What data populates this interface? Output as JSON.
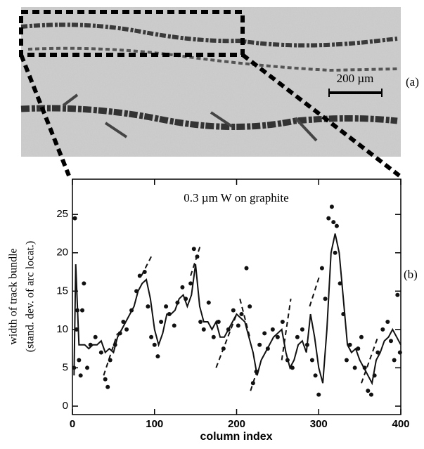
{
  "panel_a": {
    "scale_label": "200 µm",
    "label": "(a)"
  },
  "panel_b_label": "(b)",
  "chart_data": {
    "type": "line",
    "title": "0.3 µm W on graphite",
    "xlabel": "column index",
    "ylabel": [
      "width of track bundle",
      "(stand. dev. of arc locat.)"
    ],
    "xlim": [
      0,
      400
    ],
    "xticks": [
      0,
      100,
      200,
      300,
      400
    ],
    "ylim": [
      -1.1,
      29.6
    ],
    "yticks": [
      0,
      5,
      10,
      15,
      20,
      25
    ],
    "color": "#111111",
    "series": [
      {
        "style": "solid",
        "x": [
          2,
          4,
          8,
          15,
          20,
          25,
          30,
          35,
          40,
          45,
          50,
          55,
          60,
          65,
          70,
          75,
          80,
          85,
          90,
          95,
          100,
          105,
          110,
          115,
          120,
          125,
          130,
          135,
          140,
          145,
          150,
          155,
          160,
          165,
          170,
          175,
          180,
          185,
          190,
          195,
          200,
          205,
          210,
          215,
          220,
          225,
          230,
          235,
          240,
          245,
          250,
          255,
          260,
          265,
          270,
          275,
          280,
          285,
          290,
          295,
          300,
          305,
          310,
          315,
          320,
          325,
          330,
          335,
          340,
          345,
          350,
          355,
          360,
          365,
          370,
          375,
          380,
          385,
          390,
          395,
          400
        ],
        "values": [
          4,
          18.5,
          8,
          8,
          7.5,
          8,
          8,
          8.5,
          7,
          7.5,
          7,
          9,
          10,
          11,
          12,
          13,
          15,
          16,
          16.5,
          14,
          10,
          8,
          9.5,
          12,
          12,
          12.5,
          14,
          14.5,
          13,
          14.5,
          18.5,
          13,
          11,
          11,
          10,
          11,
          9,
          9,
          10,
          11,
          12,
          11.5,
          11,
          9,
          7,
          4,
          6,
          7,
          8,
          9,
          9.5,
          10,
          7,
          5,
          6,
          8,
          8.5,
          7,
          12,
          9,
          5,
          3,
          10,
          20,
          22.5,
          20,
          14,
          8,
          7,
          7.5,
          6,
          5,
          4,
          3,
          6,
          7,
          8.5,
          9,
          10,
          9,
          8
        ]
      },
      {
        "style": "dashed",
        "x": [
          38,
          55,
          null,
          84,
          96,
          null,
          144,
          156,
          null,
          175,
          200,
          null,
          204,
          216,
          null,
          217,
          226,
          null,
          255,
          266,
          null,
          289,
          301,
          null,
          352,
          372
        ],
        "values": [
          4,
          9.5,
          null,
          17,
          19.5,
          null,
          17,
          21,
          null,
          5,
          12,
          null,
          14,
          9,
          null,
          2,
          5,
          null,
          6,
          14,
          null,
          13,
          17,
          null,
          3,
          9
        ]
      },
      {
        "style": "points",
        "x": [
          2,
          3,
          5,
          6,
          8,
          10,
          12,
          14,
          18,
          22,
          28,
          35,
          40,
          43,
          46,
          52,
          58,
          62,
          66,
          72,
          78,
          82,
          88,
          92,
          96,
          100,
          104,
          108,
          114,
          118,
          124,
          128,
          134,
          138,
          144,
          148,
          152,
          156,
          160,
          166,
          172,
          178,
          184,
          190,
          196,
          202,
          206,
          212,
          216,
          220,
          224,
          228,
          234,
          238,
          244,
          250,
          256,
          262,
          268,
          274,
          280,
          286,
          292,
          296,
          300,
          304,
          308,
          312,
          316,
          318,
          320,
          322,
          326,
          330,
          334,
          338,
          344,
          348,
          352,
          356,
          360,
          364,
          368,
          372,
          378,
          384,
          388,
          392,
          396,
          399
        ],
        "values": [
          5,
          24.5,
          10,
          12.5,
          6,
          4,
          12.5,
          16,
          5,
          8,
          9,
          7,
          3.5,
          2.5,
          6,
          8,
          9.5,
          11,
          10,
          12.5,
          15,
          17,
          17.5,
          13,
          9,
          8,
          6.5,
          11,
          13,
          12,
          10.5,
          13.5,
          15.5,
          14,
          16,
          20.5,
          19.5,
          11,
          10,
          13.5,
          9,
          11,
          7.5,
          10,
          12.5,
          10.5,
          12,
          18,
          13,
          3,
          4.5,
          8,
          9.5,
          7.5,
          10,
          9,
          11,
          6,
          5,
          9,
          10,
          8,
          6,
          4,
          1.5,
          18,
          14,
          24.5,
          26,
          24,
          20,
          23.5,
          16,
          12,
          6,
          8,
          5,
          7.5,
          9,
          5,
          2,
          1.5,
          4,
          7,
          10,
          11,
          8.5,
          6,
          14.5,
          7
        ]
      }
    ]
  }
}
